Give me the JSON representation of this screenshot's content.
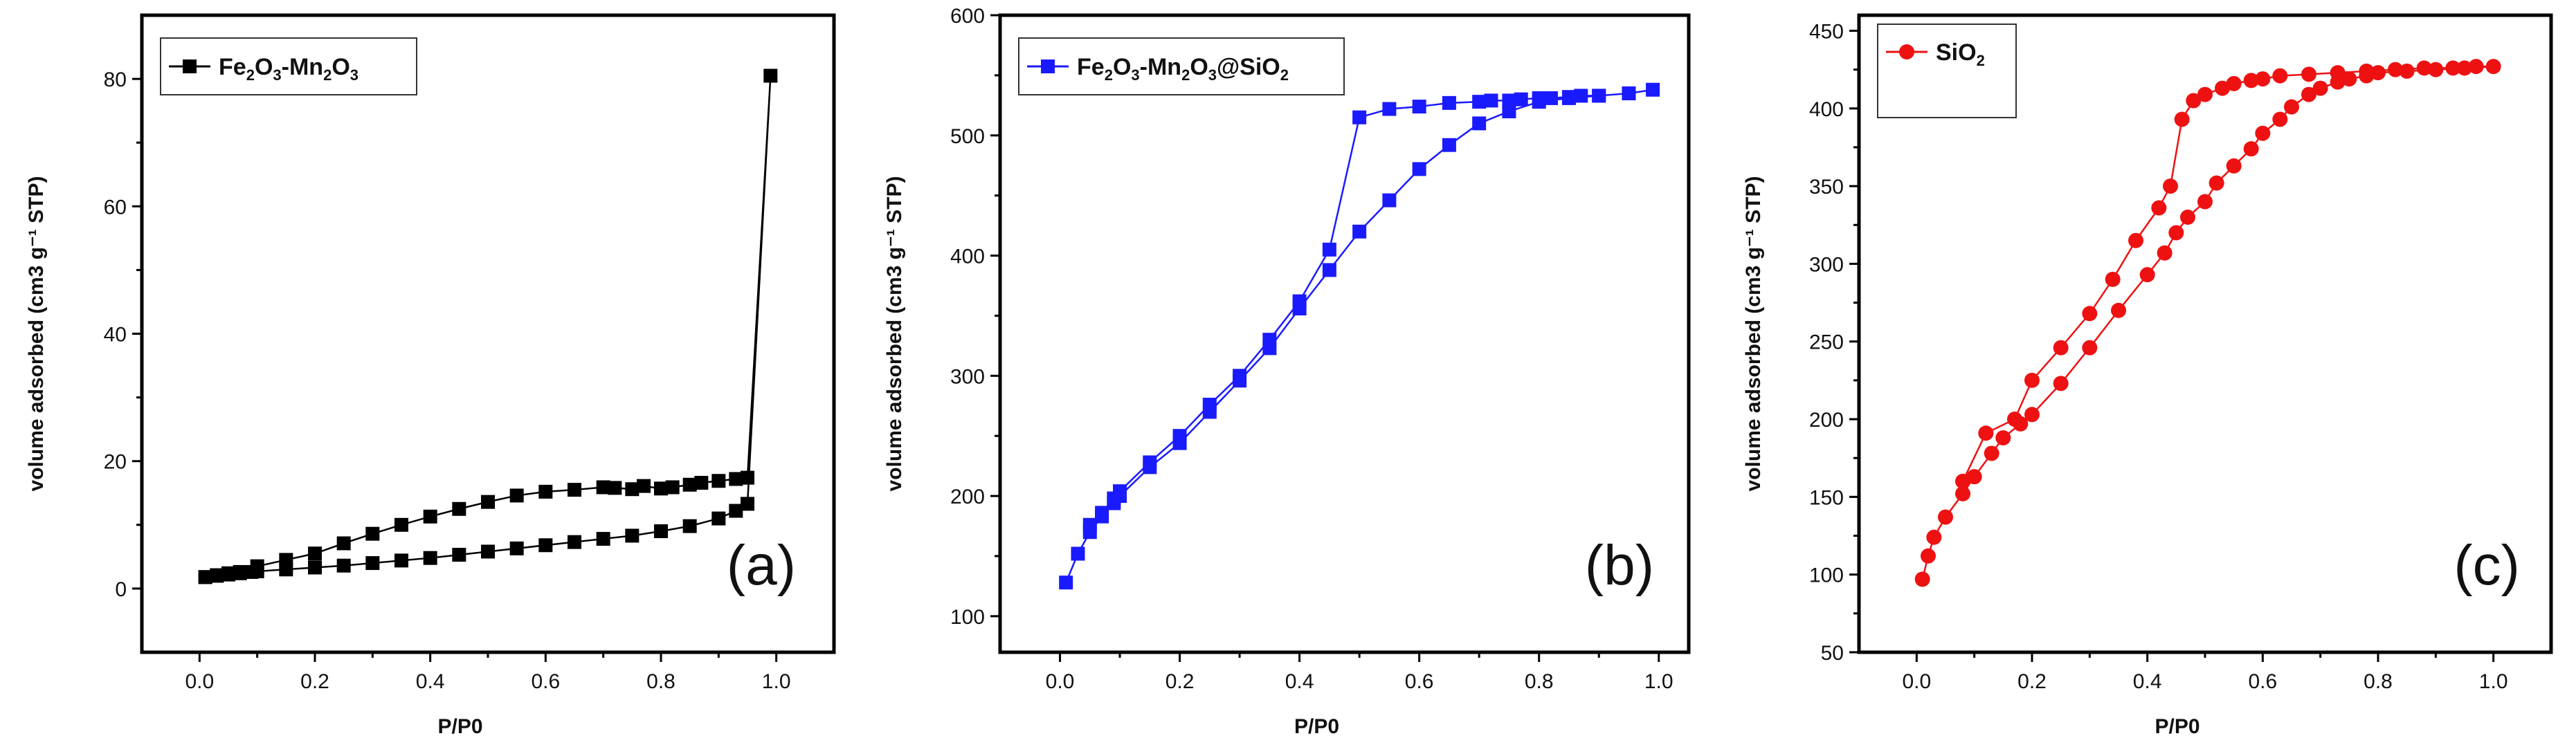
{
  "chart_data": [
    {
      "type": "scatter",
      "panel_label": "(a)",
      "xlabel": "P/P0",
      "ylabel": "volume adsorbed (cm3 g⁻¹ STP)",
      "xlim": [
        -0.1,
        1.1
      ],
      "ylim": [
        -10,
        90
      ],
      "xticks": [
        0.0,
        0.2,
        0.4,
        0.6,
        0.8,
        1.0
      ],
      "xtick_labels": [
        "0.0",
        "0.2",
        "0.4",
        "0.6",
        "0.8",
        "1.0"
      ],
      "yticks": [
        0,
        20,
        40,
        60,
        80
      ],
      "ytick_labels": [
        "0",
        "20",
        "40",
        "60",
        "80"
      ],
      "legend_position": "top-left",
      "color": "#000000",
      "marker": "square",
      "series": [
        {
          "name": "Fe₂O₃-Mn₂O₃",
          "legend_parts": [
            [
              "Fe",
              ""
            ],
            [
              "2",
              "sub"
            ],
            [
              "O",
              ""
            ],
            [
              "3",
              "sub"
            ],
            [
              "-Mn",
              ""
            ],
            [
              "2",
              "sub"
            ],
            [
              "O",
              ""
            ],
            [
              "3",
              "sub"
            ]
          ],
          "x": [
            0.01,
            0.03,
            0.05,
            0.07,
            0.09,
            0.1,
            0.15,
            0.2,
            0.25,
            0.3,
            0.35,
            0.4,
            0.45,
            0.5,
            0.55,
            0.6,
            0.65,
            0.7,
            0.75,
            0.8,
            0.85,
            0.9,
            0.93,
            0.95,
            0.99,
            0.95,
            0.93,
            0.9,
            0.87,
            0.85,
            0.82,
            0.8,
            0.77,
            0.75,
            0.72,
            0.7,
            0.65,
            0.6,
            0.55,
            0.5,
            0.45,
            0.4,
            0.35,
            0.3,
            0.25,
            0.2,
            0.15,
            0.1,
            0.07,
            0.05,
            0.03,
            0.01
          ],
          "y": [
            1.8,
            2.0,
            2.2,
            2.4,
            2.6,
            2.7,
            3.0,
            3.3,
            3.6,
            4.0,
            4.4,
            4.8,
            5.3,
            5.8,
            6.3,
            6.8,
            7.3,
            7.8,
            8.3,
            9.0,
            9.8,
            11.0,
            12.2,
            13.3,
            80.5,
            17.4,
            17.2,
            16.9,
            16.6,
            16.3,
            15.9,
            15.7,
            16.1,
            15.6,
            15.8,
            15.9,
            15.5,
            15.2,
            14.6,
            13.6,
            12.5,
            11.3,
            10.0,
            8.6,
            7.1,
            5.5,
            4.5,
            3.5,
            2.6,
            2.4,
            2.1,
            1.8
          ]
        }
      ]
    },
    {
      "type": "scatter",
      "panel_label": "(b)",
      "xlabel": "P/P0",
      "ylabel": "volume adsorbed (cm3 g⁻¹ STP)",
      "xlim": [
        -0.1,
        1.05
      ],
      "ylim": [
        70,
        600
      ],
      "xticks": [
        0.0,
        0.2,
        0.4,
        0.6,
        0.8,
        1.0
      ],
      "xtick_labels": [
        "0.0",
        "0.2",
        "0.4",
        "0.6",
        "0.8",
        "1.0"
      ],
      "yticks": [
        100,
        200,
        300,
        400,
        500,
        600
      ],
      "ytick_labels": [
        "100",
        "200",
        "300",
        "400",
        "500",
        "600"
      ],
      "legend_position": "top-left",
      "color": "#1a1aff",
      "marker": "square",
      "series": [
        {
          "name": "Fe₂O₃-Mn₂O₃@SiO₂",
          "legend_parts": [
            [
              "Fe",
              ""
            ],
            [
              "2",
              "sub"
            ],
            [
              "O",
              ""
            ],
            [
              "3",
              "sub"
            ],
            [
              "-Mn",
              ""
            ],
            [
              "2",
              "sub"
            ],
            [
              "O",
              ""
            ],
            [
              "3",
              "sub"
            ],
            [
              "@SiO",
              ""
            ],
            [
              "2",
              "sub"
            ]
          ],
          "x": [
            0.01,
            0.03,
            0.05,
            0.07,
            0.09,
            0.1,
            0.15,
            0.2,
            0.25,
            0.3,
            0.35,
            0.4,
            0.45,
            0.5,
            0.55,
            0.6,
            0.65,
            0.7,
            0.75,
            0.8,
            0.85,
            0.9,
            0.95,
            0.99,
            0.95,
            0.9,
            0.87,
            0.85,
            0.82,
            0.8,
            0.77,
            0.75,
            0.72,
            0.7,
            0.65,
            0.6,
            0.55,
            0.5,
            0.45,
            0.4,
            0.35,
            0.3,
            0.25,
            0.2,
            0.15,
            0.1,
            0.09,
            0.07,
            0.05
          ],
          "y": [
            128,
            152,
            170,
            183,
            194,
            200,
            224,
            244,
            270,
            296,
            323,
            356,
            388,
            420,
            446,
            472,
            492,
            510,
            520,
            528,
            531,
            533,
            535,
            538,
            535,
            533,
            533,
            532,
            531,
            531,
            530,
            529,
            529,
            528,
            527,
            524,
            522,
            515,
            405,
            362,
            330,
            300,
            276,
            250,
            228,
            204,
            198,
            186,
            176
          ]
        }
      ]
    },
    {
      "type": "scatter",
      "panel_label": "(c)",
      "xlabel": "P/P0",
      "ylabel": "volume adsorbed (cm3 g⁻¹ STP)",
      "xlim": [
        -0.1,
        1.1
      ],
      "ylim": [
        50,
        460
      ],
      "xticks": [
        0.0,
        0.2,
        0.4,
        0.6,
        0.8,
        1.0
      ],
      "xtick_labels": [
        "0.0",
        "0.2",
        "0.4",
        "0.6",
        "0.8",
        "1.0"
      ],
      "yticks": [
        50,
        100,
        150,
        200,
        250,
        300,
        350,
        400,
        450
      ],
      "ytick_labels": [
        "50",
        "100",
        "150",
        "200",
        "250",
        "300",
        "350",
        "400",
        "450"
      ],
      "legend_position": "top-left",
      "color": "#ee1111",
      "marker": "circle",
      "series": [
        {
          "name": "SiO₂",
          "legend_parts": [
            [
              "SiO",
              ""
            ],
            [
              "2",
              "sub"
            ]
          ],
          "x": [
            0.01,
            0.02,
            0.03,
            0.05,
            0.08,
            0.1,
            0.13,
            0.15,
            0.18,
            0.2,
            0.25,
            0.3,
            0.35,
            0.4,
            0.43,
            0.45,
            0.47,
            0.5,
            0.52,
            0.55,
            0.58,
            0.6,
            0.63,
            0.65,
            0.68,
            0.7,
            0.73,
            0.75,
            0.78,
            0.8,
            0.85,
            0.9,
            0.95,
            1.0,
            0.97,
            0.93,
            0.88,
            0.83,
            0.78,
            0.73,
            0.68,
            0.63,
            0.6,
            0.58,
            0.55,
            0.53,
            0.5,
            0.48,
            0.46,
            0.44,
            0.42,
            0.38,
            0.34,
            0.3,
            0.25,
            0.2,
            0.17,
            0.12,
            0.08
          ],
          "y": [
            97,
            112,
            124,
            137,
            152,
            163,
            178,
            188,
            197,
            203,
            223,
            246,
            270,
            293,
            307,
            320,
            330,
            340,
            352,
            363,
            374,
            384,
            393,
            401,
            409,
            413,
            417,
            419,
            421,
            423,
            424,
            425,
            426,
            427,
            427,
            426,
            426,
            425,
            424,
            423,
            422,
            421,
            419,
            418,
            416,
            413,
            409,
            405,
            393,
            350,
            336,
            315,
            290,
            268,
            246,
            225,
            200,
            191,
            160
          ]
        }
      ]
    }
  ]
}
